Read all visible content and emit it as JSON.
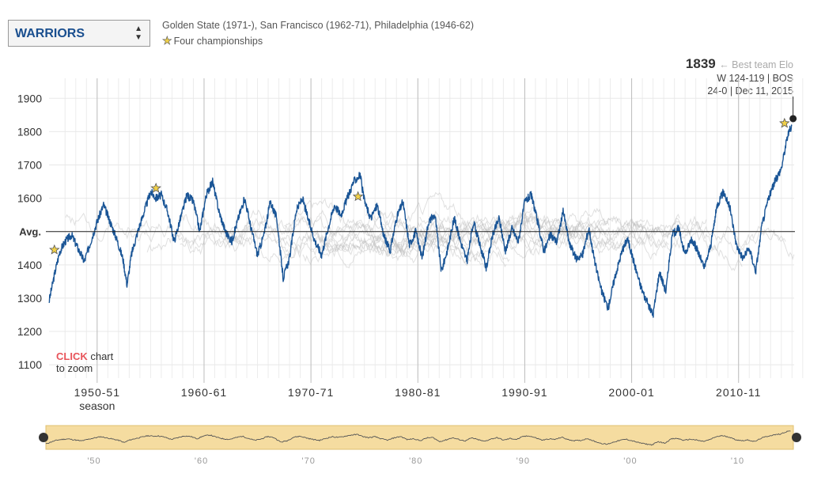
{
  "team_select": {
    "value": "WARRIORS",
    "arrows_icon": "up-down-arrows-icon"
  },
  "franchise_history": "Golden State (1971-), San Francisco (1962-71), Philadelphia (1946-62)",
  "championships_label": "Four championships",
  "best": {
    "value": "1839",
    "label": "← Best team Elo",
    "line1": "W 124-119 | BOS",
    "line2": "24-0 | Dec 11, 2015"
  },
  "click_hint": {
    "highlight": "CLICK",
    "text1": "chart",
    "text2": "to zoom"
  },
  "colors": {
    "team_line": "#1a5596",
    "background_lines": "#bbbbbb",
    "star": "#f0d048",
    "navigator": "#f5dca0"
  },
  "chart_data": {
    "type": "line",
    "title": "",
    "xlabel": "season",
    "ylabel": "",
    "x_range": [
      1946.3,
      2016.0
    ],
    "ylim": [
      1060,
      1960
    ],
    "y_ticks": [
      {
        "value": 1900,
        "label": "1900"
      },
      {
        "value": 1800,
        "label": "1800"
      },
      {
        "value": 1700,
        "label": "1700"
      },
      {
        "value": 1600,
        "label": "1600"
      },
      {
        "value": 1500,
        "label": "Avg."
      },
      {
        "value": 1400,
        "label": "1400"
      },
      {
        "value": 1300,
        "label": "1300"
      },
      {
        "value": 1200,
        "label": "1200"
      },
      {
        "value": 1100,
        "label": "1100"
      }
    ],
    "x_ticks": [
      {
        "value": 1950.8,
        "label": "1950-51"
      },
      {
        "value": 1960.8,
        "label": "1960-61"
      },
      {
        "value": 1970.8,
        "label": "1970-71"
      },
      {
        "value": 1980.8,
        "label": "1980-81"
      },
      {
        "value": 1990.8,
        "label": "1990-91"
      },
      {
        "value": 2000.8,
        "label": "2000-01"
      },
      {
        "value": 2010.8,
        "label": "2010-11"
      }
    ],
    "navigator_ticks": [
      {
        "value": 1950.8,
        "label": "'50"
      },
      {
        "value": 1960.8,
        "label": "'60"
      },
      {
        "value": 1970.8,
        "label": "'70"
      },
      {
        "value": 1980.8,
        "label": "'80"
      },
      {
        "value": 1990.8,
        "label": "'90"
      },
      {
        "value": 2000.8,
        "label": "'00"
      },
      {
        "value": 2010.8,
        "label": "'10"
      }
    ],
    "grid": true,
    "legend": "none",
    "series": [
      {
        "name": "WARRIORS",
        "x": [
          1946.3,
          1946.8,
          1947.3,
          1947.8,
          1948.4,
          1949.0,
          1949.6,
          1950.2,
          1950.8,
          1951.4,
          1952.0,
          1952.6,
          1953.2,
          1953.6,
          1954.0,
          1954.6,
          1955.2,
          1955.8,
          1956.3,
          1956.8,
          1957.4,
          1958.0,
          1958.6,
          1959.2,
          1959.8,
          1960.4,
          1961.0,
          1961.6,
          1962.2,
          1962.8,
          1963.4,
          1964.0,
          1964.6,
          1965.2,
          1965.8,
          1966.4,
          1967.0,
          1967.6,
          1968.2,
          1968.8,
          1969.4,
          1970.0,
          1970.6,
          1971.2,
          1971.8,
          1972.4,
          1973.0,
          1973.6,
          1974.2,
          1974.8,
          1975.4,
          1975.8,
          1976.4,
          1977.0,
          1977.6,
          1978.2,
          1978.8,
          1979.4,
          1980.0,
          1980.6,
          1981.2,
          1981.8,
          1982.4,
          1983.0,
          1983.6,
          1984.2,
          1984.8,
          1985.4,
          1986.0,
          1986.6,
          1987.2,
          1987.8,
          1988.4,
          1989.0,
          1989.6,
          1990.2,
          1990.8,
          1991.4,
          1992.0,
          1992.6,
          1993.2,
          1993.8,
          1994.4,
          1995.0,
          1995.6,
          1996.2,
          1996.8,
          1997.4,
          1998.0,
          1998.6,
          1999.2,
          1999.8,
          2000.4,
          2001.0,
          2001.6,
          2002.2,
          2002.8,
          2003.4,
          2004.0,
          2004.6,
          2005.2,
          2005.8,
          2006.4,
          2007.0,
          2007.6,
          2008.2,
          2008.8,
          2009.4,
          2010.0,
          2010.6,
          2011.2,
          2011.8,
          2012.4,
          2013.0,
          2013.6,
          2014.2,
          2014.8,
          2015.4,
          2015.8
        ],
        "y": [
          1290,
          1370,
          1440,
          1470,
          1490,
          1450,
          1410,
          1470,
          1530,
          1580,
          1530,
          1480,
          1420,
          1340,
          1430,
          1500,
          1560,
          1620,
          1600,
          1610,
          1560,
          1470,
          1540,
          1610,
          1590,
          1500,
          1610,
          1650,
          1560,
          1500,
          1470,
          1540,
          1600,
          1510,
          1430,
          1490,
          1590,
          1540,
          1360,
          1420,
          1560,
          1600,
          1530,
          1470,
          1430,
          1510,
          1580,
          1550,
          1600,
          1650,
          1670,
          1590,
          1540,
          1580,
          1490,
          1440,
          1540,
          1590,
          1460,
          1500,
          1420,
          1530,
          1550,
          1380,
          1450,
          1540,
          1470,
          1410,
          1530,
          1460,
          1390,
          1490,
          1540,
          1440,
          1510,
          1470,
          1590,
          1610,
          1530,
          1440,
          1490,
          1470,
          1560,
          1460,
          1420,
          1430,
          1510,
          1400,
          1320,
          1270,
          1360,
          1430,
          1480,
          1410,
          1340,
          1290,
          1250,
          1380,
          1320,
          1490,
          1510,
          1430,
          1480,
          1440,
          1390,
          1460,
          1580,
          1620,
          1570,
          1460,
          1420,
          1450,
          1380,
          1520,
          1600,
          1650,
          1690,
          1790,
          1820
        ]
      }
    ],
    "annotations": [
      {
        "x": 1946.8,
        "y": 1445,
        "text": "championship"
      },
      {
        "x": 1956.3,
        "y": 1630,
        "text": "championship"
      },
      {
        "x": 1975.2,
        "y": 1605,
        "text": "championship"
      },
      {
        "x": 2015.1,
        "y": 1825,
        "text": "championship"
      }
    ],
    "best_point": {
      "x": 2015.9,
      "y": 1839
    }
  }
}
